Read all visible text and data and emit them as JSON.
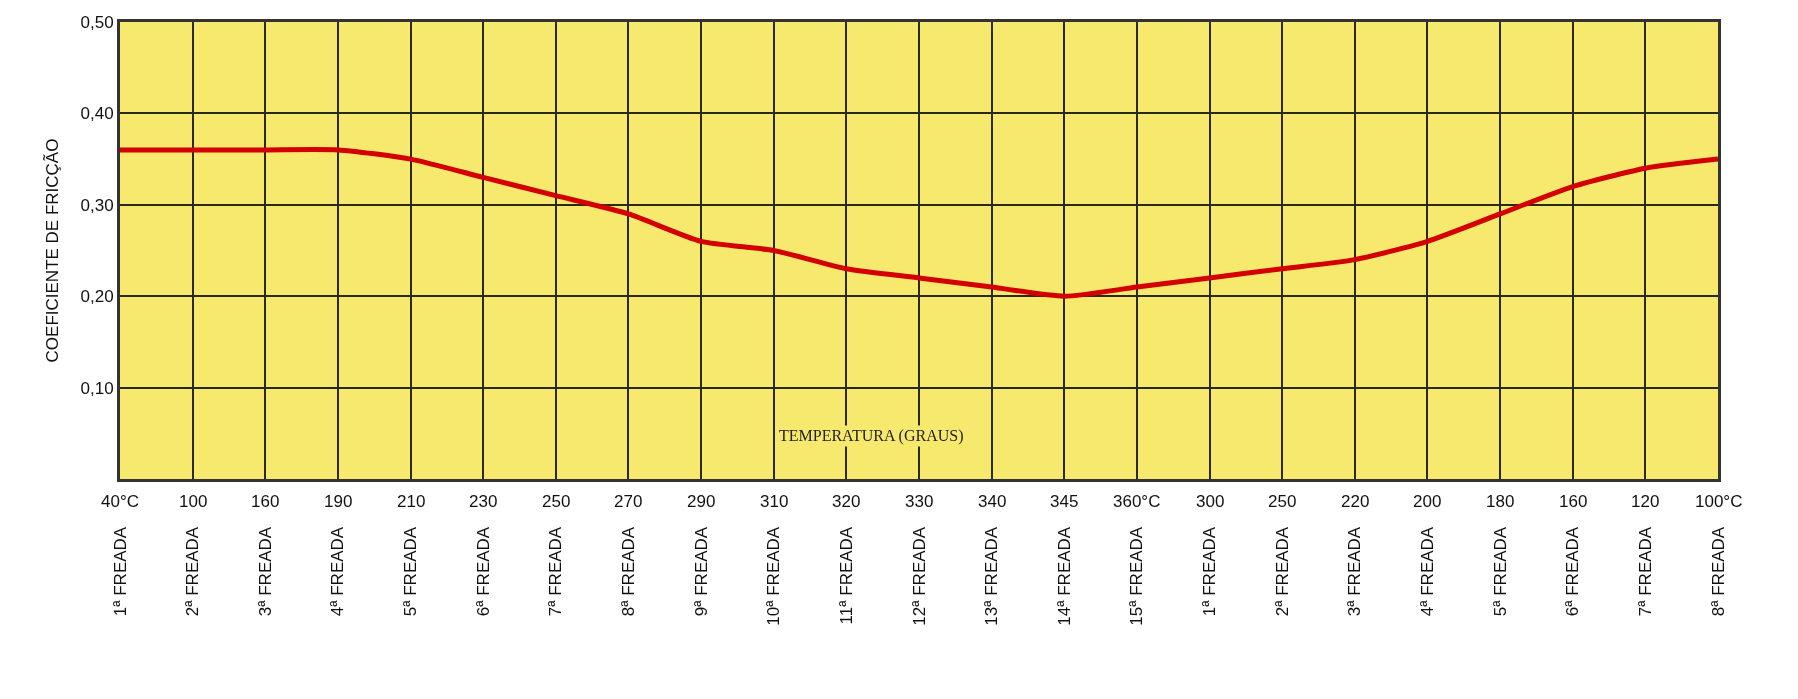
{
  "chart_data": {
    "type": "line",
    "ylabel": "COEFICIENTE DE FRICÇÃO",
    "xlabel": "TEMPERATURA (GRAUS)",
    "categories": [
      "1ª FREADA",
      "2ª FREADA",
      "3ª FREADA",
      "4ª FREADA",
      "5ª FREADA",
      "6ª FREADA",
      "7ª FREADA",
      "8ª FREADA",
      "9ª FREADA",
      "10ª FREADA",
      "11ª FREADA",
      "12ª FREADA",
      "13ª FREADA",
      "14ª FREADA",
      "15ª FREADA",
      "1ª FREADA",
      "2ª FREADA",
      "3ª FREADA",
      "4ª FREADA",
      "5ª FREADA",
      "6ª FREADA",
      "7ª FREADA",
      "8ª FREADA"
    ],
    "annotations": [
      "40°C",
      "100",
      "160",
      "190",
      "210",
      "230",
      "250",
      "270",
      "290",
      "310",
      "320",
      "330",
      "340",
      "345",
      "360°C",
      "300",
      "250",
      "220",
      "200",
      "180",
      "160",
      "120",
      "100°C"
    ],
    "series": [
      {
        "color": "#d40000",
        "values": [
          0.36,
          0.36,
          0.36,
          0.36,
          0.35,
          0.33,
          0.31,
          0.29,
          0.26,
          0.25,
          0.23,
          0.22,
          0.21,
          0.2,
          0.21,
          0.22,
          0.23,
          0.24,
          0.26,
          0.29,
          0.32,
          0.34,
          0.35
        ]
      }
    ],
    "ylim": [
      0,
      0.5
    ],
    "yticks": [
      {
        "value": 0.1,
        "label": "0,10"
      },
      {
        "value": 0.2,
        "label": "0,20"
      },
      {
        "value": 0.3,
        "label": "0,30"
      },
      {
        "value": 0.4,
        "label": "0,40"
      },
      {
        "value": 0.5,
        "label": "0,50"
      }
    ],
    "grid": true,
    "marker": "none",
    "line_style": "solid"
  }
}
